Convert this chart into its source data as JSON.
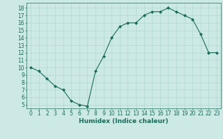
{
  "x": [
    0,
    1,
    2,
    3,
    4,
    5,
    6,
    7,
    8,
    9,
    10,
    11,
    12,
    13,
    14,
    15,
    16,
    17,
    18,
    19,
    20,
    21,
    22,
    23
  ],
  "y": [
    10,
    9.5,
    8.5,
    7.5,
    7.0,
    5.5,
    5.0,
    4.8,
    9.5,
    11.5,
    14.0,
    15.5,
    16.0,
    16.0,
    17.0,
    17.5,
    17.5,
    18.0,
    17.5,
    17.0,
    16.5,
    14.5,
    12.0,
    12.0
  ],
  "xlabel": "Humidex (Indice chaleur)",
  "ylim": [
    4.5,
    18.7
  ],
  "xlim": [
    -0.5,
    23.5
  ],
  "yticks": [
    5,
    6,
    7,
    8,
    9,
    10,
    11,
    12,
    13,
    14,
    15,
    16,
    17,
    18
  ],
  "xticks": [
    0,
    1,
    2,
    3,
    4,
    5,
    6,
    7,
    8,
    9,
    10,
    11,
    12,
    13,
    14,
    15,
    16,
    17,
    18,
    19,
    20,
    21,
    22,
    23
  ],
  "line_color": "#1a6b5a",
  "marker_color": "#1a6b5a",
  "bg_color": "#cce9e5",
  "grid_color": "#b0d8d2",
  "tick_label_color": "#1a6b5a",
  "xlabel_color": "#1a6b5a",
  "xlabel_fontsize": 6.5,
  "tick_fontsize": 5.5
}
